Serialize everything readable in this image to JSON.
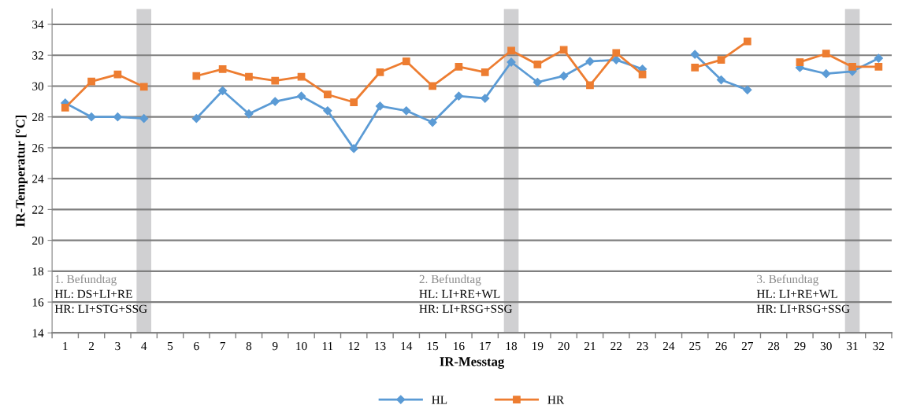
{
  "chart_data": {
    "type": "line",
    "xlabel": "IR-Messtag",
    "ylabel": "IR-Temperatur [°C]",
    "x": [
      1,
      2,
      3,
      4,
      5,
      6,
      7,
      8,
      9,
      10,
      11,
      12,
      13,
      14,
      15,
      16,
      17,
      18,
      19,
      20,
      21,
      22,
      23,
      24,
      25,
      26,
      27,
      28,
      29,
      30,
      31,
      32
    ],
    "xlim": [
      0.5,
      32.5
    ],
    "xticks": [
      1,
      2,
      3,
      4,
      5,
      6,
      7,
      8,
      9,
      10,
      11,
      12,
      13,
      14,
      15,
      16,
      17,
      18,
      19,
      20,
      21,
      22,
      23,
      24,
      25,
      26,
      27,
      28,
      29,
      30,
      31,
      32
    ],
    "ylim": [
      14,
      35
    ],
    "yticks": [
      14,
      16,
      18,
      20,
      22,
      24,
      26,
      28,
      30,
      32,
      34
    ],
    "series": [
      {
        "name": "HL",
        "color": "#5b9bd5",
        "marker": "diamond",
        "values": [
          28.9,
          28.0,
          28.0,
          27.9,
          null,
          27.9,
          29.7,
          28.2,
          29.0,
          29.35,
          28.4,
          25.95,
          28.7,
          28.4,
          27.65,
          29.35,
          29.2,
          31.55,
          30.25,
          30.65,
          31.6,
          31.7,
          31.1,
          null,
          32.05,
          30.4,
          29.75,
          null,
          31.2,
          30.8,
          30.95,
          31.8
        ]
      },
      {
        "name": "HR",
        "color": "#ed7d31",
        "marker": "square",
        "values": [
          28.6,
          30.3,
          30.75,
          29.95,
          null,
          30.65,
          31.1,
          30.6,
          30.35,
          30.6,
          29.45,
          28.95,
          30.9,
          31.6,
          30.0,
          31.25,
          30.9,
          32.3,
          31.4,
          32.35,
          30.05,
          32.15,
          30.75,
          null,
          31.2,
          31.7,
          32.9,
          null,
          31.55,
          32.1,
          31.25,
          31.25
        ]
      }
    ],
    "bands": [
      {
        "axis": "x",
        "from": 3.72,
        "to": 4.28,
        "color": "#d0d0d2"
      },
      {
        "axis": "x",
        "from": 17.72,
        "to": 18.28,
        "color": "#d0d0d2"
      },
      {
        "axis": "x",
        "from": 30.72,
        "to": 31.28,
        "color": "#d0d0d2"
      }
    ],
    "annotations": [
      "1. Befundtag",
      "HL: DS+LI+RE",
      "HR: LI+STG+SSG",
      "2. Befundtag",
      "HL: LI+RE+WL",
      "HR: LI+RSG+SSG",
      "3. Befundtag",
      "HL: LI+RE+WL",
      "HR: LI+RSG+SSG"
    ],
    "grid": "y",
    "legend": "bottom",
    "line_style": "solid"
  }
}
